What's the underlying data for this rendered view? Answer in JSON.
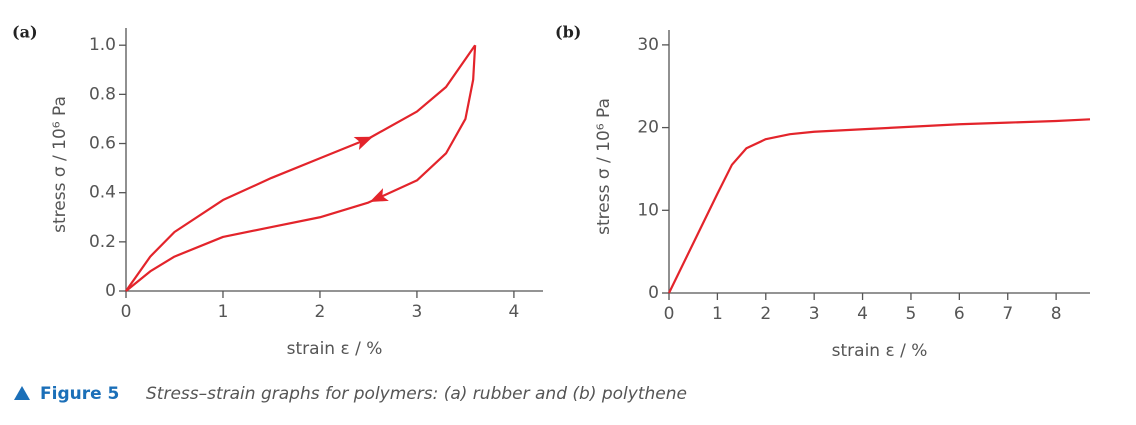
{
  "chart_data": [
    {
      "type": "line",
      "panel": "(a)",
      "ylabel": "stress σ / 10⁶ Pa",
      "xlabel": "strain ε / %",
      "xlim": [
        0,
        4.3
      ],
      "xticks": [
        0,
        1,
        2,
        3,
        4
      ],
      "ylim": [
        0,
        1.07
      ],
      "yticks": [
        0,
        0.2,
        0.4,
        0.6,
        0.8,
        {
          "value": 1,
          "label": "1.0"
        }
      ],
      "series": [
        {
          "color": "#e3242b",
          "x": [
            0,
            0.25,
            0.5,
            1,
            1.5,
            2,
            2.5,
            3,
            3.3,
            3.6
          ],
          "values": [
            0,
            0.14,
            0.24,
            0.37,
            0.46,
            0.54,
            0.62,
            0.73,
            0.83,
            1.0
          ]
        },
        {
          "color": "#e3242b",
          "x": [
            3.6,
            3.58,
            3.5,
            3.3,
            3,
            2.5,
            2,
            1.5,
            1,
            0.5,
            0.25,
            0
          ],
          "values": [
            1.0,
            0.86,
            0.7,
            0.56,
            0.45,
            0.36,
            0.3,
            0.26,
            0.22,
            0.14,
            0.08,
            0
          ]
        }
      ]
    },
    {
      "type": "line",
      "panel": "(b)",
      "ylabel": "stress σ / 10⁶ Pa",
      "xlabel": "strain ε / %",
      "xlim": [
        0,
        8.7
      ],
      "xticks": [
        0,
        1,
        2,
        3,
        4,
        5,
        6,
        7,
        8
      ],
      "ylim": [
        0,
        31.8
      ],
      "yticks": [
        0,
        10,
        20,
        30
      ],
      "series": [
        {
          "color": "#e3242b",
          "x": [
            0,
            0.5,
            1,
            1.3,
            1.6,
            2,
            2.5,
            3,
            4,
            5,
            6,
            7,
            8,
            8.7
          ],
          "values": [
            0,
            6,
            12,
            15.5,
            17.5,
            18.6,
            19.2,
            19.5,
            19.8,
            20.1,
            20.4,
            20.6,
            20.8,
            21
          ]
        }
      ]
    }
  ],
  "caption": {
    "label": "Figure 5",
    "text": "Stress–strain graphs for polymers: (a) rubber and (b) polythene"
  }
}
